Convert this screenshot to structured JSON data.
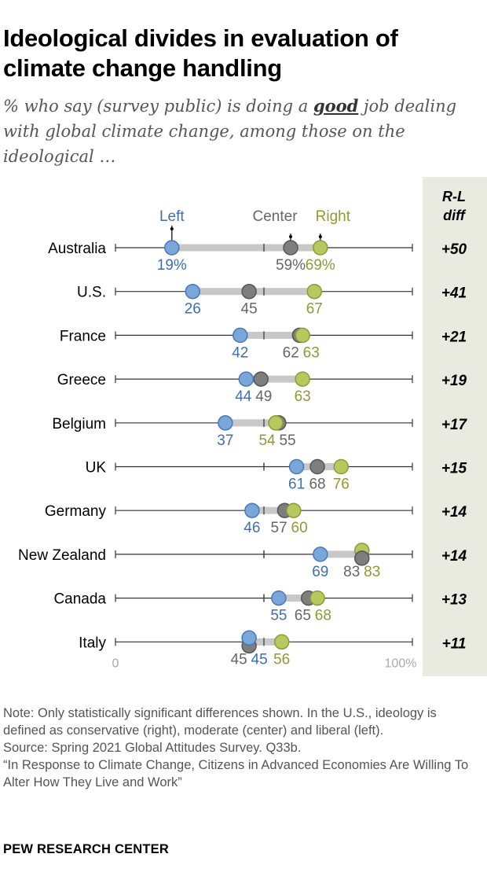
{
  "title": "Ideological divides in evaluation of climate change handling",
  "subtitle": {
    "before": "% who say (survey public) is doing a ",
    "emphasis": "good",
    "after": " job dealing with global climate change, among those on the ideological …"
  },
  "colors": {
    "left": "#7aa6d8",
    "left_stroke": "#4a78b8",
    "left_label": "#3e6fb0",
    "center": "#7e7e7e",
    "center_stroke": "#555555",
    "center_label": "#666666",
    "right": "#b5c95e",
    "right_stroke": "#8a9c35",
    "right_label": "#8a9c35",
    "diff_panel": "#e9ebe0"
  },
  "chart_data": {
    "type": "dot",
    "x_range": [
      0,
      100
    ],
    "axis_min_label": "0",
    "axis_max_label": "100%",
    "legend": {
      "left": "Left",
      "center": "Center",
      "right": "Right"
    },
    "diff_header": [
      "R-L",
      "diff"
    ],
    "series_names": [
      "Left",
      "Center",
      "Right"
    ],
    "rows": [
      {
        "country": "Australia",
        "left": 19,
        "center": 59,
        "right": 69,
        "diff": "+50",
        "left_label": "19%",
        "center_label": "59%",
        "right_label": "69%"
      },
      {
        "country": "U.S.",
        "left": 26,
        "center": 45,
        "right": 67,
        "diff": "+41",
        "left_label": "26",
        "center_label": "45",
        "right_label": "67"
      },
      {
        "country": "France",
        "left": 42,
        "center": 62,
        "right": 63,
        "diff": "+21",
        "left_label": "42",
        "center_label": "62",
        "right_label": "63"
      },
      {
        "country": "Greece",
        "left": 44,
        "center": 49,
        "right": 63,
        "diff": "+19",
        "left_label": "44",
        "center_label": "49",
        "right_label": "63"
      },
      {
        "country": "Belgium",
        "left": 37,
        "center": 55,
        "right": 54,
        "diff": "+17",
        "left_label": "37",
        "center_label": "55",
        "right_label": "54"
      },
      {
        "country": "UK",
        "left": 61,
        "center": 68,
        "right": 76,
        "diff": "+15",
        "left_label": "61",
        "center_label": "68",
        "right_label": "76"
      },
      {
        "country": "Germany",
        "left": 46,
        "center": 57,
        "right": 60,
        "diff": "+14",
        "left_label": "46",
        "center_label": "57",
        "right_label": "60"
      },
      {
        "country": "New Zealand",
        "left": 69,
        "center": 83,
        "right": 83,
        "diff": "+14",
        "left_label": "69",
        "center_label": "83",
        "right_label": "83"
      },
      {
        "country": "Canada",
        "left": 55,
        "center": 65,
        "right": 68,
        "diff": "+13",
        "left_label": "55",
        "center_label": "65",
        "right_label": "68"
      },
      {
        "country": "Italy",
        "left": 45,
        "center": 45,
        "right": 56,
        "diff": "+11",
        "left_label": "45",
        "center_label": "45",
        "right_label": "56"
      }
    ]
  },
  "notes": [
    "Note: Only statistically significant differences shown. In the U.S., ideology is defined as conservative (right), moderate (center) and liberal (left).",
    "Source: Spring 2021 Global Attitudes Survey. Q33b.",
    "“In Response to Climate Change, Citizens in Advanced Economies Are Willing To Alter How They Live and Work”"
  ],
  "brand": "PEW RESEARCH CENTER"
}
